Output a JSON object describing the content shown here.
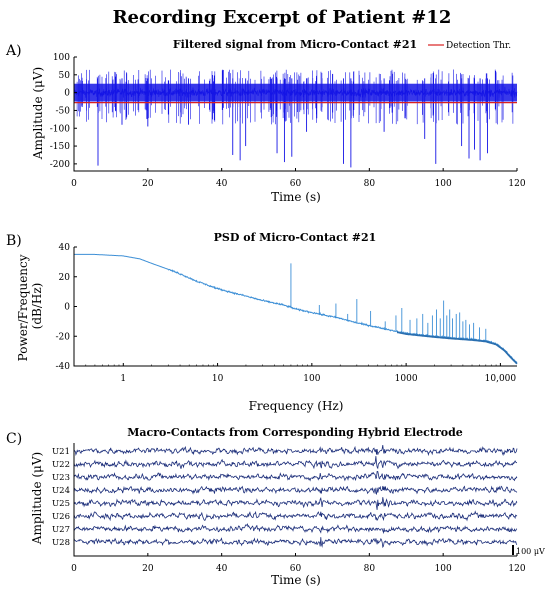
{
  "figure": {
    "title": "Recording Excerpt of Patient #12"
  },
  "colors": {
    "signal": "#1515e6",
    "threshold": "#d92020",
    "psd": "#3d8fd6",
    "macro": "#1c2e7a"
  },
  "chart_data": [
    {
      "panel": "A)",
      "type": "line",
      "title": "Filtered signal from Micro-Contact #21",
      "xlabel": "Time (s)",
      "ylabel": "Amplitude (μV)",
      "xlim": [
        0,
        120
      ],
      "ylim": [
        -220,
        100
      ],
      "xticks": [
        "0",
        "20",
        "40",
        "60",
        "80",
        "100",
        "120"
      ],
      "yticks": [
        "100",
        "50",
        "0",
        "-50",
        "-100",
        "-150",
        "-200"
      ],
      "legend": {
        "label": "Detection Thr.",
        "placement": "top-right"
      },
      "series": [
        {
          "name": "Detection Thr.",
          "type": "hline",
          "y": -28
        }
      ],
      "noise_band_uV": [
        -25,
        25
      ],
      "spikes": [
        {
          "t": 6.5,
          "amp": -205
        },
        {
          "t": 13,
          "amp": -90
        },
        {
          "t": 20,
          "amp": -95
        },
        {
          "t": 31,
          "amp": -90
        },
        {
          "t": 43,
          "amp": -175
        },
        {
          "t": 45,
          "amp": -190
        },
        {
          "t": 46.5,
          "amp": -150
        },
        {
          "t": 55,
          "amp": -170
        },
        {
          "t": 57,
          "amp": -195
        },
        {
          "t": 59,
          "amp": -180
        },
        {
          "t": 63,
          "amp": -110
        },
        {
          "t": 73,
          "amp": -200
        },
        {
          "t": 75,
          "amp": -210
        },
        {
          "t": 84,
          "amp": -110
        },
        {
          "t": 95,
          "amp": -130
        },
        {
          "t": 98,
          "amp": -200
        },
        {
          "t": 105,
          "amp": -150
        },
        {
          "t": 107,
          "amp": -185
        },
        {
          "t": 108.5,
          "amp": -160
        },
        {
          "t": 110,
          "amp": -190
        },
        {
          "t": 112,
          "amp": -170
        }
      ]
    },
    {
      "panel": "B)",
      "type": "line",
      "title": "PSD of Micro-Contact #21",
      "xlabel": "Frequency (Hz)",
      "ylabel": "Power/Frequency (dB/Hz)",
      "xscale": "log",
      "xlim": [
        0.3,
        15000
      ],
      "ylim": [
        -40,
        40
      ],
      "xticks": [
        "1",
        "10",
        "100",
        "1000",
        "10,000"
      ],
      "yticks": [
        "40",
        "20",
        "0",
        "-20",
        "-40"
      ],
      "series": [
        {
          "x": [
            0.3,
            0.5,
            1,
            1.5,
            2,
            3,
            4,
            6,
            10,
            15,
            20,
            30,
            50,
            70,
            100,
            200,
            300,
            500,
            700,
            1000,
            2000,
            3000,
            5000,
            7000,
            9000,
            11000,
            13000,
            15000
          ],
          "y": [
            35,
            35,
            34,
            32,
            29,
            25,
            22,
            17,
            12,
            9,
            7,
            4,
            1,
            -2,
            -4,
            -8,
            -11,
            -14,
            -16,
            -18,
            -20,
            -21,
            -22,
            -23,
            -25,
            -29,
            -34,
            -38
          ]
        }
      ],
      "peaks": [
        {
          "f": 60,
          "db": 29
        },
        {
          "f": 120,
          "db": 1
        },
        {
          "f": 180,
          "db": 2
        },
        {
          "f": 240,
          "db": -5
        },
        {
          "f": 300,
          "db": 5
        },
        {
          "f": 420,
          "db": -3
        },
        {
          "f": 600,
          "db": -10
        },
        {
          "f": 780,
          "db": -6
        },
        {
          "f": 900,
          "db": -1
        },
        {
          "f": 1100,
          "db": -9
        },
        {
          "f": 1300,
          "db": -8
        },
        {
          "f": 1500,
          "db": -5
        },
        {
          "f": 1700,
          "db": -11
        },
        {
          "f": 1900,
          "db": -6
        },
        {
          "f": 2100,
          "db": -2
        },
        {
          "f": 2300,
          "db": -8
        },
        {
          "f": 2500,
          "db": 4
        },
        {
          "f": 2700,
          "db": -6
        },
        {
          "f": 2900,
          "db": -2
        },
        {
          "f": 3100,
          "db": -8
        },
        {
          "f": 3400,
          "db": -5
        },
        {
          "f": 3700,
          "db": -4
        },
        {
          "f": 4000,
          "db": -10
        },
        {
          "f": 4300,
          "db": -9
        },
        {
          "f": 4700,
          "db": -12
        },
        {
          "f": 5200,
          "db": -11
        },
        {
          "f": 6000,
          "db": -14
        },
        {
          "f": 7000,
          "db": -15
        }
      ]
    },
    {
      "panel": "C)",
      "type": "line",
      "title": "Macro-Contacts from Corresponding Hybrid Electrode",
      "xlabel": "Time (s)",
      "ylabel": "Amplitude (μV)",
      "xlim": [
        0,
        120
      ],
      "xticks": [
        "0",
        "20",
        "40",
        "60",
        "80",
        "100",
        "120"
      ],
      "channels": [
        "U21",
        "U22",
        "U23",
        "U24",
        "U25",
        "U26",
        "U27",
        "U28"
      ],
      "scale_bar": "100 μV",
      "scale_bar_uV": 100,
      "events_t": [
        67,
        82,
        84
      ]
    }
  ]
}
